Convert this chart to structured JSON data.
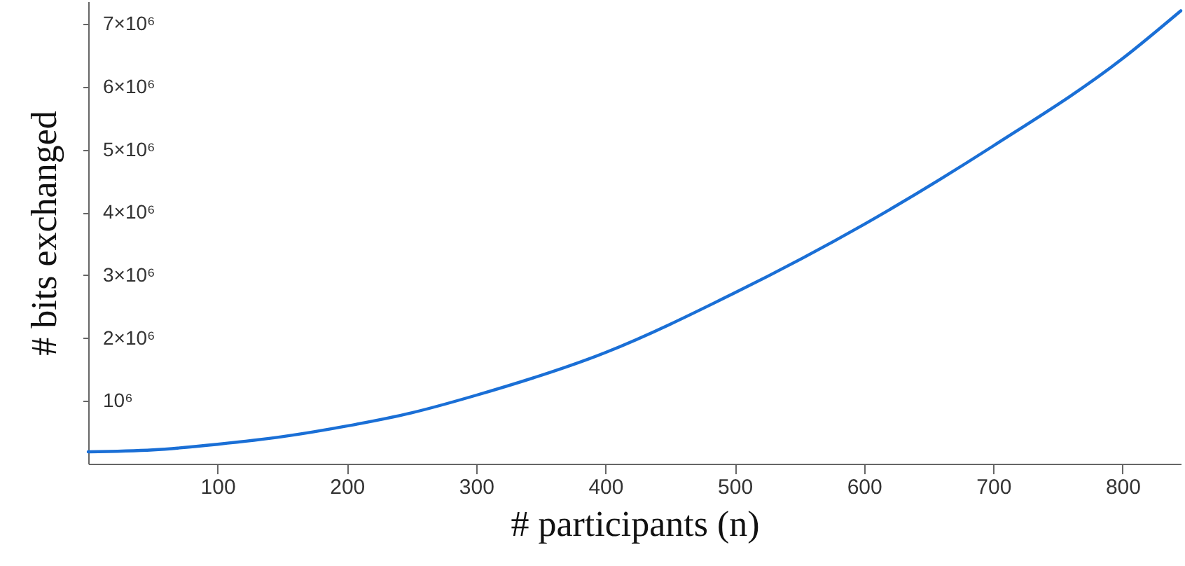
{
  "chart_data": {
    "type": "line",
    "xlabel": "# participants (n)",
    "ylabel": "# bits exchanged",
    "x": [
      0,
      50,
      100,
      150,
      200,
      250,
      300,
      400,
      500,
      600,
      700,
      800,
      845
    ],
    "series": [
      {
        "color": "#1a6fd6",
        "values": [
          190000,
          220000,
          310000,
          430000,
          600000,
          810000,
          1090000,
          1770000,
          2720000,
          3810000,
          5060000,
          6450000,
          7210000
        ]
      }
    ],
    "xlim": [
      0,
      845
    ],
    "ylim": [
      0,
      7360000
    ],
    "xticks": [
      100,
      200,
      300,
      400,
      500,
      600,
      700,
      800
    ],
    "yticks": [
      {
        "value": 1000000,
        "label": "10⁶"
      },
      {
        "value": 2000000,
        "label": "2×10⁶"
      },
      {
        "value": 3000000,
        "label": "3×10⁶"
      },
      {
        "value": 4000000,
        "label": "4×10⁶"
      },
      {
        "value": 5000000,
        "label": "5×10⁶"
      },
      {
        "value": 6000000,
        "label": "6×10⁶"
      },
      {
        "value": 7000000,
        "label": "7×10⁶"
      }
    ],
    "grid": false,
    "marker": "none",
    "line_style": "solid"
  }
}
